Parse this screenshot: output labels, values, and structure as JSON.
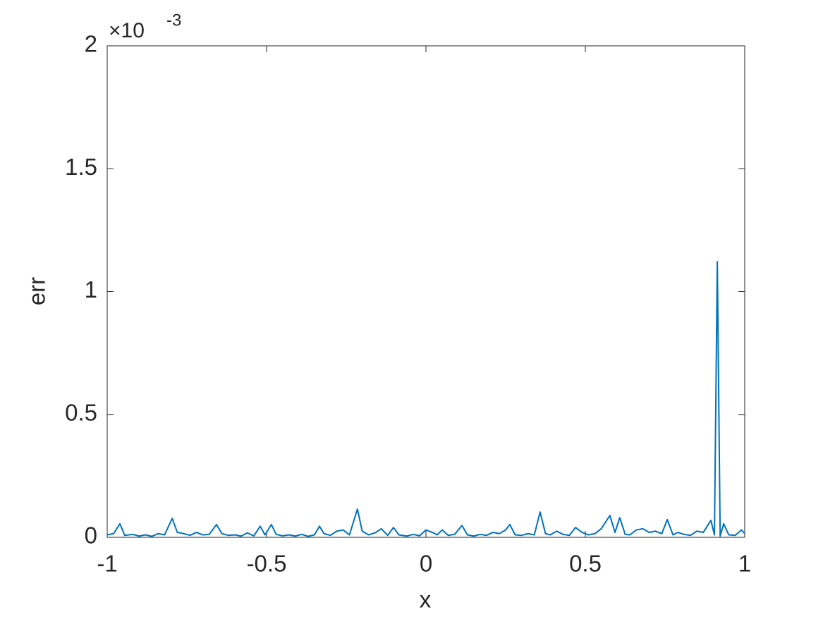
{
  "chart_data": {
    "type": "line",
    "xlabel": "x",
    "ylabel": "err",
    "y_exponent_base": "×10",
    "y_exponent_power": "-3",
    "x": [
      -1,
      -0.98,
      -0.96,
      -0.945,
      -0.92,
      -0.9,
      -0.88,
      -0.86,
      -0.84,
      -0.82,
      -0.796,
      -0.78,
      -0.76,
      -0.74,
      -0.72,
      -0.7,
      -0.68,
      -0.657,
      -0.64,
      -0.62,
      -0.6,
      -0.58,
      -0.56,
      -0.54,
      -0.52,
      -0.505,
      -0.485,
      -0.47,
      -0.45,
      -0.43,
      -0.41,
      -0.39,
      -0.37,
      -0.35,
      -0.334,
      -0.32,
      -0.3,
      -0.28,
      -0.26,
      -0.24,
      -0.215,
      -0.2,
      -0.18,
      -0.16,
      -0.14,
      -0.12,
      -0.102,
      -0.085,
      -0.06,
      -0.04,
      -0.02,
      0,
      0.02,
      0.035,
      0.051,
      0.07,
      0.09,
      0.113,
      0.13,
      0.15,
      0.17,
      0.19,
      0.21,
      0.23,
      0.25,
      0.263,
      0.28,
      0.3,
      0.32,
      0.34,
      0.358,
      0.375,
      0.39,
      0.41,
      0.43,
      0.45,
      0.469,
      0.49,
      0.51,
      0.53,
      0.55,
      0.577,
      0.593,
      0.608,
      0.625,
      0.64,
      0.66,
      0.68,
      0.7,
      0.72,
      0.74,
      0.757,
      0.775,
      0.79,
      0.81,
      0.83,
      0.85,
      0.87,
      0.894,
      0.905,
      0.914,
      0.923,
      0.934,
      0.95,
      0.97,
      0.99,
      1
    ],
    "series": [
      {
        "color": "#0072bd",
        "values": [
          0.01,
          0.015,
          0.055,
          0.008,
          0.012,
          0.005,
          0.01,
          0.004,
          0.015,
          0.01,
          0.077,
          0.02,
          0.015,
          0.008,
          0.02,
          0.01,
          0.012,
          0.052,
          0.015,
          0.008,
          0.01,
          0.005,
          0.018,
          0.006,
          0.045,
          0.01,
          0.052,
          0.012,
          0.006,
          0.01,
          0.005,
          0.012,
          0.004,
          0.01,
          0.045,
          0.015,
          0.008,
          0.025,
          0.03,
          0.01,
          0.115,
          0.025,
          0.01,
          0.018,
          0.035,
          0.008,
          0.04,
          0.01,
          0.005,
          0.012,
          0.006,
          0.03,
          0.02,
          0.01,
          0.03,
          0.008,
          0.012,
          0.048,
          0.01,
          0.005,
          0.012,
          0.008,
          0.02,
          0.015,
          0.03,
          0.052,
          0.01,
          0.008,
          0.015,
          0.01,
          0.103,
          0.015,
          0.01,
          0.025,
          0.012,
          0.008,
          0.04,
          0.02,
          0.01,
          0.015,
          0.035,
          0.089,
          0.02,
          0.08,
          0.012,
          0.01,
          0.03,
          0.035,
          0.02,
          0.025,
          0.015,
          0.072,
          0.01,
          0.02,
          0.012,
          0.008,
          0.025,
          0.02,
          0.069,
          0.01,
          1.122,
          0.005,
          0.055,
          0.01,
          0.008,
          0.03,
          0.015
        ]
      }
    ],
    "xlim": [
      -1,
      1
    ],
    "xticks": [
      -1,
      -0.5,
      0,
      0.5,
      1
    ],
    "ylim": [
      0,
      2
    ],
    "yticks": [
      0,
      0.5,
      1,
      1.5,
      2
    ],
    "grid": false
  }
}
